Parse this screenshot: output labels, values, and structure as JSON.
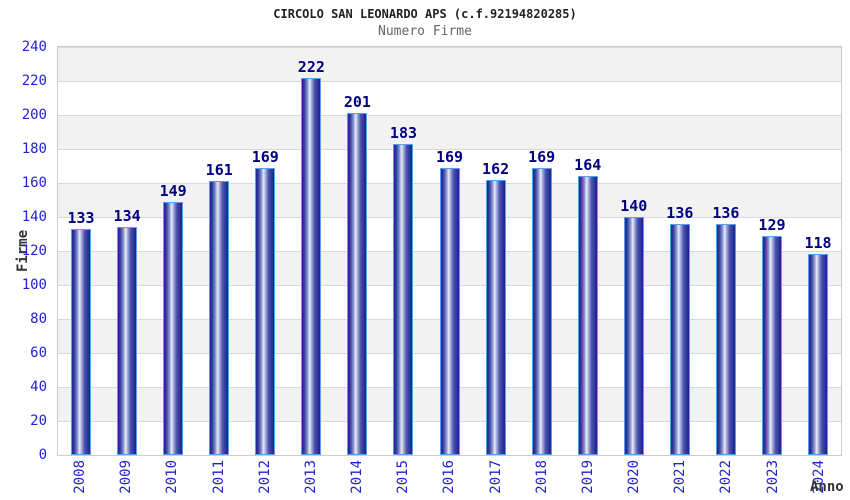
{
  "chart_data": {
    "type": "bar",
    "title": "CIRCOLO SAN LEONARDO APS (c.f.92194820285)",
    "subtitle": "Numero Firme",
    "xlabel": "Anno",
    "ylabel": "Firme",
    "categories": [
      "2008",
      "2009",
      "2010",
      "2011",
      "2012",
      "2013",
      "2014",
      "2015",
      "2016",
      "2017",
      "2018",
      "2019",
      "2020",
      "2021",
      "2022",
      "2023",
      "2024"
    ],
    "values": [
      133,
      134,
      149,
      161,
      169,
      222,
      201,
      183,
      169,
      162,
      169,
      164,
      140,
      136,
      136,
      129,
      118
    ],
    "ylim": [
      0,
      240
    ],
    "yticks": [
      0,
      20,
      40,
      60,
      80,
      100,
      120,
      140,
      160,
      180,
      200,
      220,
      240
    ],
    "grid": "horizontal gridlines with alternating gray/white bands",
    "legend_position": "none"
  },
  "colors": {
    "title_color": "#222222",
    "subtitle_color": "#666666",
    "tick_label": "#2222cc",
    "value_label": "#000080",
    "axis_label_color": "#333333",
    "bar_dark": "#1b2188",
    "bar_light": "#eceef8",
    "bar_outline": "#55a0f0",
    "band_gray": "#f2f2f2",
    "band_white": "#ffffff",
    "gridline": "#d9d9d9",
    "plot_border": "#cccccc"
  }
}
